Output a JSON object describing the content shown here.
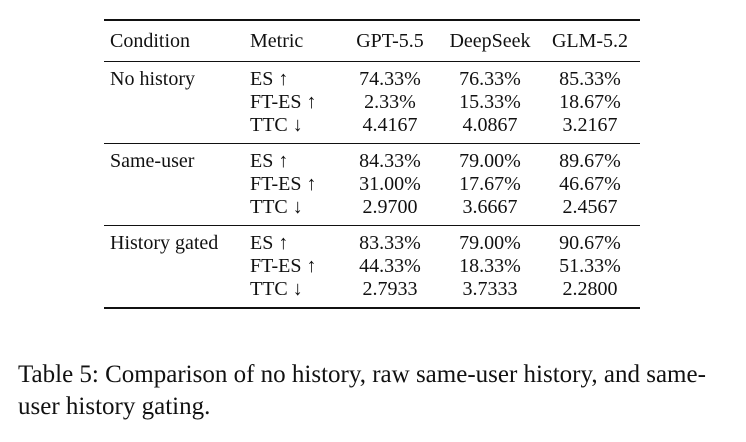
{
  "table": {
    "headers": [
      "Condition",
      "Metric",
      "GPT-5.5",
      "DeepSeek",
      "GLM-5.2"
    ],
    "groups": [
      {
        "condition": "No history",
        "rows": [
          {
            "metric": "ES ↑",
            "values": [
              "74.33%",
              "76.33%",
              "85.33%"
            ]
          },
          {
            "metric": "FT-ES ↑",
            "values": [
              "2.33%",
              "15.33%",
              "18.67%"
            ]
          },
          {
            "metric": "TTC ↓",
            "values": [
              "4.4167",
              "4.0867",
              "3.2167"
            ]
          }
        ]
      },
      {
        "condition": "Same-user",
        "rows": [
          {
            "metric": "ES ↑",
            "values": [
              "84.33%",
              "79.00%",
              "89.67%"
            ]
          },
          {
            "metric": "FT-ES ↑",
            "values": [
              "31.00%",
              "17.67%",
              "46.67%"
            ]
          },
          {
            "metric": "TTC ↓",
            "values": [
              "2.9700",
              "3.6667",
              "2.4567"
            ]
          }
        ]
      },
      {
        "condition": "History gated",
        "rows": [
          {
            "metric": "ES ↑",
            "values": [
              "83.33%",
              "79.00%",
              "90.67%"
            ]
          },
          {
            "metric": "FT-ES ↑",
            "values": [
              "44.33%",
              "18.33%",
              "51.33%"
            ]
          },
          {
            "metric": "TTC ↓",
            "values": [
              "2.7933",
              "3.7333",
              "2.2800"
            ]
          }
        ]
      }
    ]
  },
  "caption": "Table 5: Comparison of no history, raw same-user history, and same-user history gating."
}
